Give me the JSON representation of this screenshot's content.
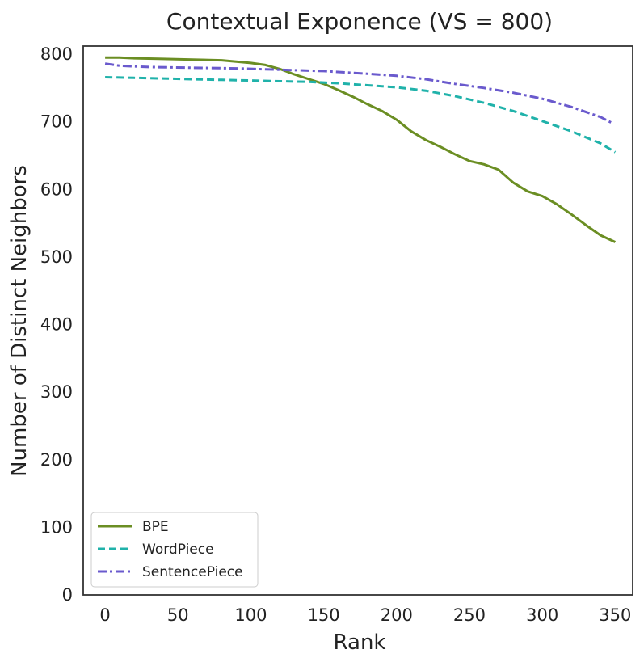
{
  "chart_data": {
    "type": "line",
    "title": "Contextual Exponence (VS = 800)",
    "xlabel": "Rank",
    "ylabel": "Number of Distinct Neighbors",
    "xlim": [
      -15,
      362
    ],
    "ylim": [
      0,
      812
    ],
    "xticks": [
      0,
      50,
      100,
      150,
      200,
      250,
      300,
      350
    ],
    "yticks": [
      0,
      100,
      200,
      300,
      400,
      500,
      600,
      700,
      800
    ],
    "grid": false,
    "legend_position": "bottom-left",
    "series": [
      {
        "name": "BPE",
        "color": "#6b8e23",
        "dash": "solid",
        "x": [
          0,
          10,
          20,
          40,
          60,
          80,
          90,
          100,
          110,
          120,
          130,
          140,
          150,
          160,
          170,
          180,
          190,
          200,
          210,
          220,
          230,
          240,
          250,
          260,
          270,
          280,
          290,
          300,
          310,
          320,
          330,
          340,
          350
        ],
        "y": [
          795,
          795,
          794,
          793,
          792,
          791,
          789,
          787,
          784,
          778,
          770,
          763,
          756,
          747,
          737,
          726,
          716,
          703,
          686,
          673,
          663,
          652,
          642,
          637,
          629,
          610,
          597,
          590,
          578,
          563,
          547,
          532,
          522
        ]
      },
      {
        "name": "WordPiece",
        "color": "#20b2aa",
        "dash": "dashed",
        "x": [
          0,
          20,
          40,
          60,
          80,
          100,
          120,
          140,
          160,
          180,
          200,
          220,
          240,
          260,
          280,
          300,
          320,
          340,
          350
        ],
        "y": [
          766,
          765,
          764,
          763,
          762,
          761,
          760,
          759,
          757,
          754,
          751,
          746,
          738,
          728,
          716,
          701,
          686,
          668,
          655
        ]
      },
      {
        "name": "SentencePiece",
        "color": "#6a5acd",
        "dash": "dashdot",
        "x": [
          0,
          10,
          30,
          60,
          90,
          120,
          150,
          180,
          200,
          220,
          240,
          260,
          280,
          300,
          320,
          340,
          348
        ],
        "y": [
          786,
          783,
          781,
          780,
          779,
          777,
          775,
          771,
          768,
          763,
          756,
          750,
          743,
          734,
          722,
          707,
          698
        ]
      }
    ]
  }
}
